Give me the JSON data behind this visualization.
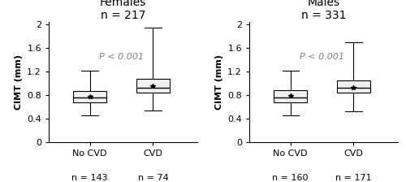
{
  "panels": [
    {
      "title": "Females",
      "n_total": "n = 217",
      "groups": [
        {
          "label": "No CVD",
          "n_label": "n = 143",
          "whislo": 0.46,
          "q1": 0.68,
          "med": 0.76,
          "q3": 0.87,
          "whishi": 1.22,
          "mean": 0.77
        },
        {
          "label": "CVD",
          "n_label": "n = 74",
          "whislo": 0.54,
          "q1": 0.84,
          "med": 0.92,
          "q3": 1.08,
          "whishi": 1.95,
          "mean": 0.95
        }
      ],
      "pvalue": "P < 0.001",
      "ylabel": "CIMT (mm)"
    },
    {
      "title": "Males",
      "n_total": "n = 331",
      "groups": [
        {
          "label": "No CVD",
          "n_label": "n = 160",
          "whislo": 0.46,
          "q1": 0.68,
          "med": 0.76,
          "q3": 0.88,
          "whishi": 1.22,
          "mean": 0.78
        },
        {
          "label": "CVD",
          "n_label": "n = 171",
          "whislo": 0.52,
          "q1": 0.84,
          "med": 0.93,
          "q3": 1.05,
          "whishi": 1.7,
          "mean": 0.92
        }
      ],
      "pvalue": "P < 0.001",
      "ylabel": "CIMT (mm)"
    }
  ],
  "ylim": [
    0,
    2.05
  ],
  "yticks": [
    0,
    0.4,
    0.8,
    1.2,
    1.6,
    2.0
  ],
  "yticklabels": [
    "0",
    "0.4",
    "0.8",
    "1.2",
    "1.6",
    "2"
  ],
  "box_facecolor": "#f0f0f0",
  "line_color": "#000000",
  "background_color": "#ffffff",
  "title_fontsize": 10,
  "axis_label_fontsize": 8,
  "tick_fontsize": 8,
  "n_label_fontsize": 8,
  "pvalue_fontsize": 8,
  "pvalue_color": "#808080"
}
